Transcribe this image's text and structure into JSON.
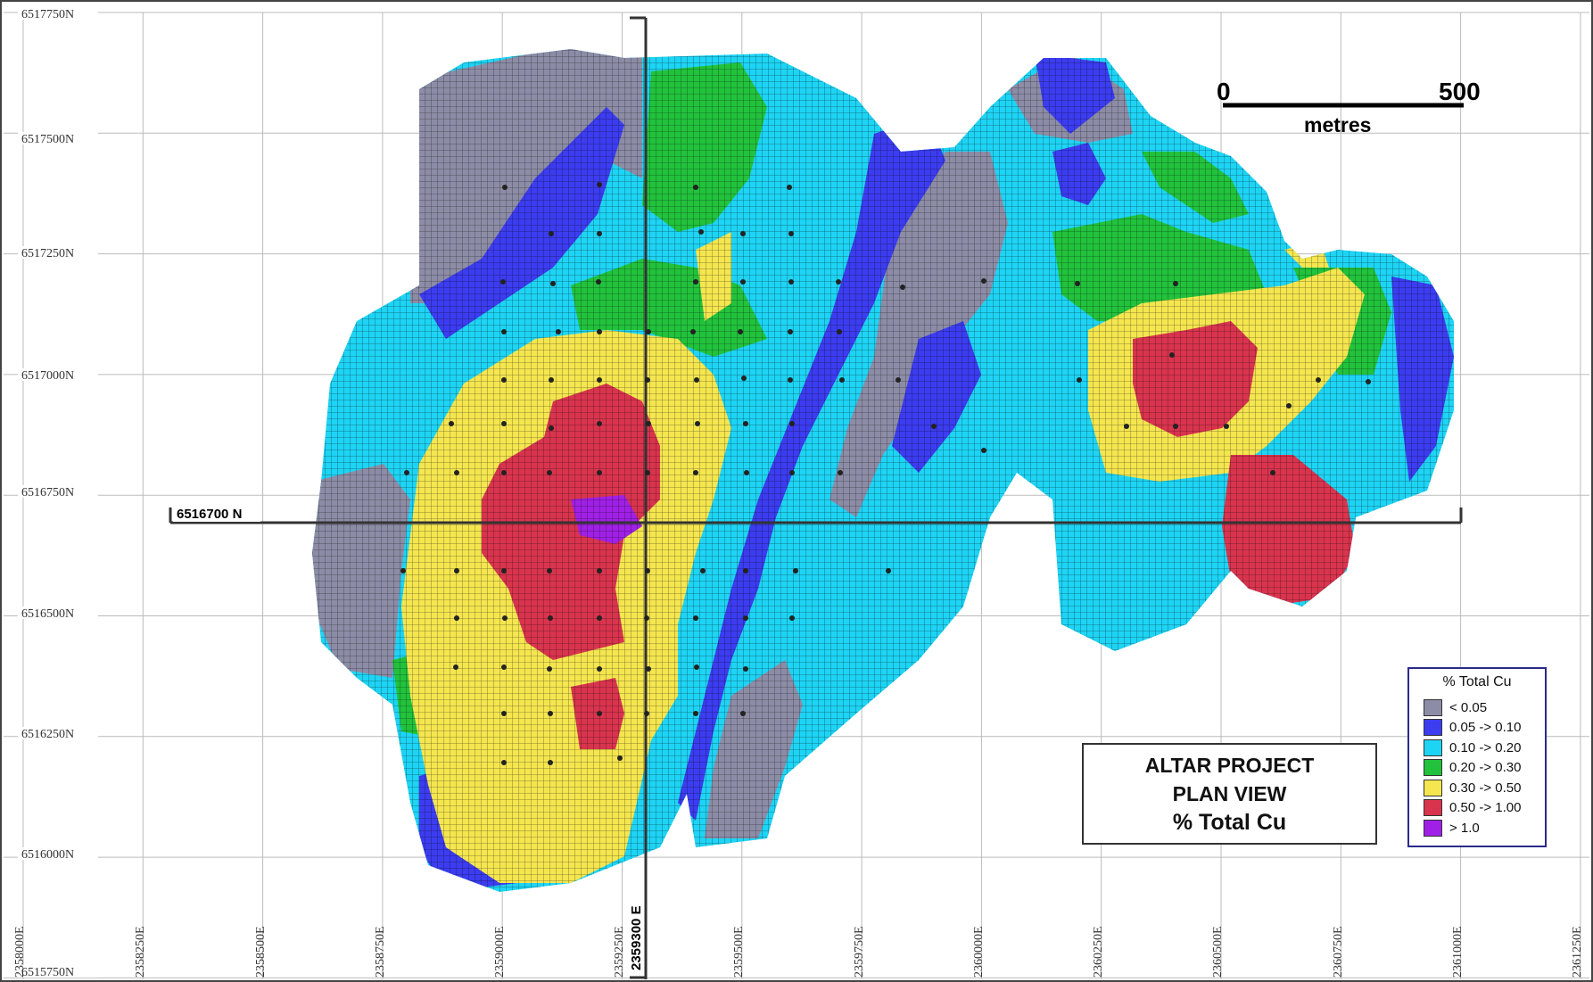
{
  "map": {
    "title_lines": [
      "ALTAR PROJECT",
      "PLAN VIEW",
      "% Total Cu"
    ],
    "northing_labels": [
      "6517750N",
      "6517500N",
      "6517250N",
      "6517000N",
      "6516750N",
      "6516500N",
      "6516250N",
      "6516000N",
      "6515750N"
    ],
    "easting_labels": [
      "2358000E",
      "2358250E",
      "2358500E",
      "2358750E",
      "2359000E",
      "2359250E",
      "2359500E",
      "2359750E",
      "2360000E",
      "2360250E",
      "2360500E",
      "2360750E",
      "2361000E",
      "2361250E"
    ],
    "section_ns_label": "6516700 N",
    "section_ew_label": "2359300 E",
    "scale_bar": {
      "start": "0",
      "end": "500",
      "unit": "metres"
    },
    "legend": {
      "title": "% Total Cu",
      "items": [
        {
          "label": "< 0.05",
          "color": "#8c8ca6"
        },
        {
          "label": "0.05 -> 0.10",
          "color": "#3c3cf0"
        },
        {
          "label": "0.10 -> 0.20",
          "color": "#1ed4f5"
        },
        {
          "label": "0.20 -> 0.30",
          "color": "#22c23c"
        },
        {
          "label": "0.30 -> 0.50",
          "color": "#f5e650"
        },
        {
          "label": "0.50 -> 1.00",
          "color": "#d9344e"
        },
        {
          "label": "> 1.0",
          "color": "#a020e6"
        }
      ]
    }
  }
}
